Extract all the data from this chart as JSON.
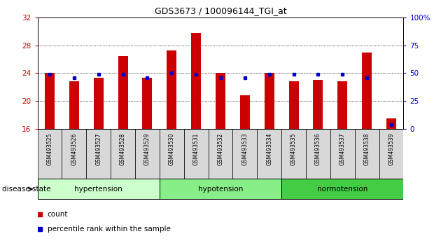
{
  "title": "GDS3673 / 100096144_TGI_at",
  "samples": [
    "GSM493525",
    "GSM493526",
    "GSM493527",
    "GSM493528",
    "GSM493529",
    "GSM493530",
    "GSM493531",
    "GSM493532",
    "GSM493533",
    "GSM493534",
    "GSM493535",
    "GSM493536",
    "GSM493537",
    "GSM493538",
    "GSM493539"
  ],
  "counts": [
    24.0,
    22.8,
    23.3,
    26.5,
    23.3,
    27.3,
    29.8,
    24.0,
    20.8,
    24.0,
    22.8,
    23.0,
    22.8,
    27.0,
    17.5
  ],
  "percentiles": [
    49,
    46,
    49,
    49,
    46,
    50,
    49,
    46,
    46,
    49,
    49,
    49,
    49,
    46,
    4
  ],
  "baseline": 16,
  "ylim_left": [
    16,
    32
  ],
  "ylim_right": [
    0,
    100
  ],
  "yticks_left": [
    16,
    20,
    24,
    28,
    32
  ],
  "yticks_right": [
    0,
    25,
    50,
    75,
    100
  ],
  "groups": [
    {
      "label": "hypertension",
      "start": 0,
      "end": 5
    },
    {
      "label": "hypotension",
      "start": 5,
      "end": 10
    },
    {
      "label": "normotension",
      "start": 10,
      "end": 15
    }
  ],
  "group_colors": [
    "#ccffcc",
    "#88ee88",
    "#44cc44"
  ],
  "bar_color": "#cc0000",
  "dot_color": "#0000cc",
  "bar_width": 0.4,
  "tick_color_left": "#cc0000",
  "tick_color_right": "#0000cc",
  "disease_state_label": "disease state",
  "legend_count_label": "count",
  "legend_pct_label": "percentile rank within the sample"
}
